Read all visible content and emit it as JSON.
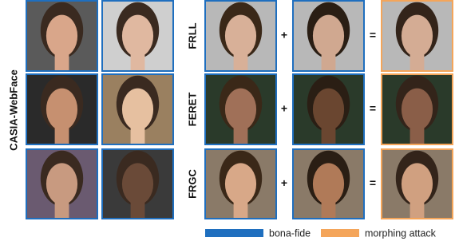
{
  "dataset_label": "CASIA-WebFace",
  "rows": [
    {
      "label": "FRLL"
    },
    {
      "label": "FERET"
    },
    {
      "label": "FRGC"
    }
  ],
  "operators": {
    "plus": "+",
    "equals": "="
  },
  "legend": [
    {
      "label": "bona-fide",
      "color": "#1f6fbf"
    },
    {
      "label": "morphing attack",
      "color": "#f4a55a"
    }
  ]
}
